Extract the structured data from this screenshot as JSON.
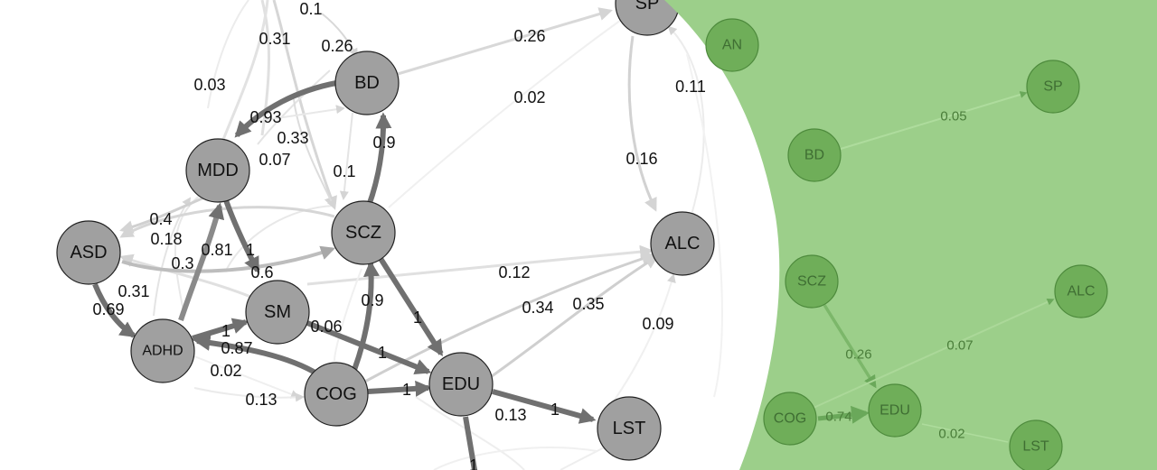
{
  "main_graph": {
    "nodes": [
      {
        "id": "SP",
        "label": "SP"
      },
      {
        "id": "BD",
        "label": "BD"
      },
      {
        "id": "MDD",
        "label": "MDD"
      },
      {
        "id": "ASD",
        "label": "ASD"
      },
      {
        "id": "SCZ",
        "label": "SCZ"
      },
      {
        "id": "ALC",
        "label": "ALC"
      },
      {
        "id": "SM",
        "label": "SM"
      },
      {
        "id": "ADHD",
        "label": "ADHD"
      },
      {
        "id": "COG",
        "label": "COG"
      },
      {
        "id": "EDU",
        "label": "EDU"
      },
      {
        "id": "LST",
        "label": "LST"
      }
    ],
    "edge_labels": [
      "0.1",
      "0.31",
      "0.26",
      "0.26",
      "0.03",
      "0.02",
      "0.11",
      "0.93",
      "0.33",
      "0.07",
      "0.9",
      "0.16",
      "0.1",
      "0.4",
      "0.18",
      "0.81",
      "1",
      "0.3",
      "0.6",
      "0.12",
      "0.31",
      "0.69",
      "0.9",
      "1",
      "0.34",
      "0.35",
      "0.06",
      "1",
      "0.87",
      "1",
      "0.09",
      "0.02",
      "0.13",
      "1",
      "0.13",
      "1",
      "1"
    ]
  },
  "overlay_graph": {
    "nodes": [
      {
        "id": "AN",
        "label": "AN"
      },
      {
        "id": "SP",
        "label": "SP"
      },
      {
        "id": "BD",
        "label": "BD"
      },
      {
        "id": "SCZ",
        "label": "SCZ"
      },
      {
        "id": "ALC",
        "label": "ALC"
      },
      {
        "id": "COG",
        "label": "COG"
      },
      {
        "id": "EDU",
        "label": "EDU"
      },
      {
        "id": "LST",
        "label": "LST"
      }
    ],
    "edge_labels": [
      "0.05",
      "0.26",
      "0.07",
      "0.74",
      "0.02"
    ]
  },
  "colors": {
    "node_fill": "#a0a0a0",
    "node_stroke": "#222222",
    "overlay_bg": "#9ccf8a",
    "overlay_node_fill": "#6fae59",
    "overlay_node_stroke": "#4d8a3c"
  }
}
